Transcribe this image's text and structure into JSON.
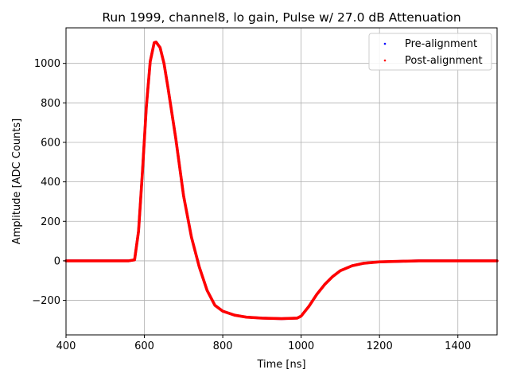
{
  "chart_data": {
    "type": "scatter",
    "title": "Run 1999, channel8, lo gain, Pulse w/ 27.0 dB Attenuation",
    "xlabel": "Time [ns]",
    "ylabel": "Amplitude [ADC Counts]",
    "xlim": [
      400,
      1500
    ],
    "ylim": [
      -375,
      1180
    ],
    "xticks": [
      400,
      600,
      800,
      1000,
      1200,
      1400
    ],
    "yticks": [
      -200,
      0,
      200,
      400,
      600,
      800,
      1000
    ],
    "xtick_labels": [
      "400",
      "600",
      "800",
      "1000",
      "1200",
      "1400"
    ],
    "ytick_labels": [
      "−200",
      "0",
      "200",
      "400",
      "600",
      "800",
      "1000"
    ],
    "grid": true,
    "legend_position": "top-right",
    "series": [
      {
        "name": "Pre-alignment",
        "color": "#0000ff",
        "x": [
          400,
          500,
          560,
          575,
          585,
          595,
          605,
          615,
          625,
          630,
          640,
          650,
          660,
          680,
          700,
          720,
          740,
          760,
          780,
          800,
          830,
          860,
          900,
          950,
          990,
          1000,
          1020,
          1040,
          1060,
          1080,
          1100,
          1130,
          1160,
          1200,
          1300,
          1400,
          1500
        ],
        "y": [
          0,
          0,
          0,
          5,
          150,
          450,
          780,
          1010,
          1105,
          1108,
          1080,
          1000,
          880,
          620,
          330,
          120,
          -30,
          -150,
          -225,
          -255,
          -275,
          -285,
          -290,
          -293,
          -290,
          -280,
          -230,
          -170,
          -120,
          -80,
          -50,
          -25,
          -12,
          -5,
          0,
          0,
          0
        ]
      },
      {
        "name": "Post-alignment",
        "color": "#ff0000",
        "x": [
          400,
          500,
          560,
          575,
          585,
          595,
          605,
          615,
          625,
          630,
          640,
          650,
          660,
          680,
          700,
          720,
          740,
          760,
          780,
          800,
          830,
          860,
          900,
          950,
          990,
          1000,
          1020,
          1040,
          1060,
          1080,
          1100,
          1130,
          1160,
          1200,
          1300,
          1400,
          1500
        ],
        "y": [
          0,
          0,
          0,
          5,
          150,
          450,
          780,
          1010,
          1105,
          1108,
          1080,
          1000,
          880,
          620,
          330,
          120,
          -30,
          -150,
          -225,
          -255,
          -275,
          -285,
          -290,
          -293,
          -290,
          -280,
          -230,
          -170,
          -120,
          -80,
          -50,
          -25,
          -12,
          -5,
          0,
          0,
          0
        ]
      }
    ]
  }
}
